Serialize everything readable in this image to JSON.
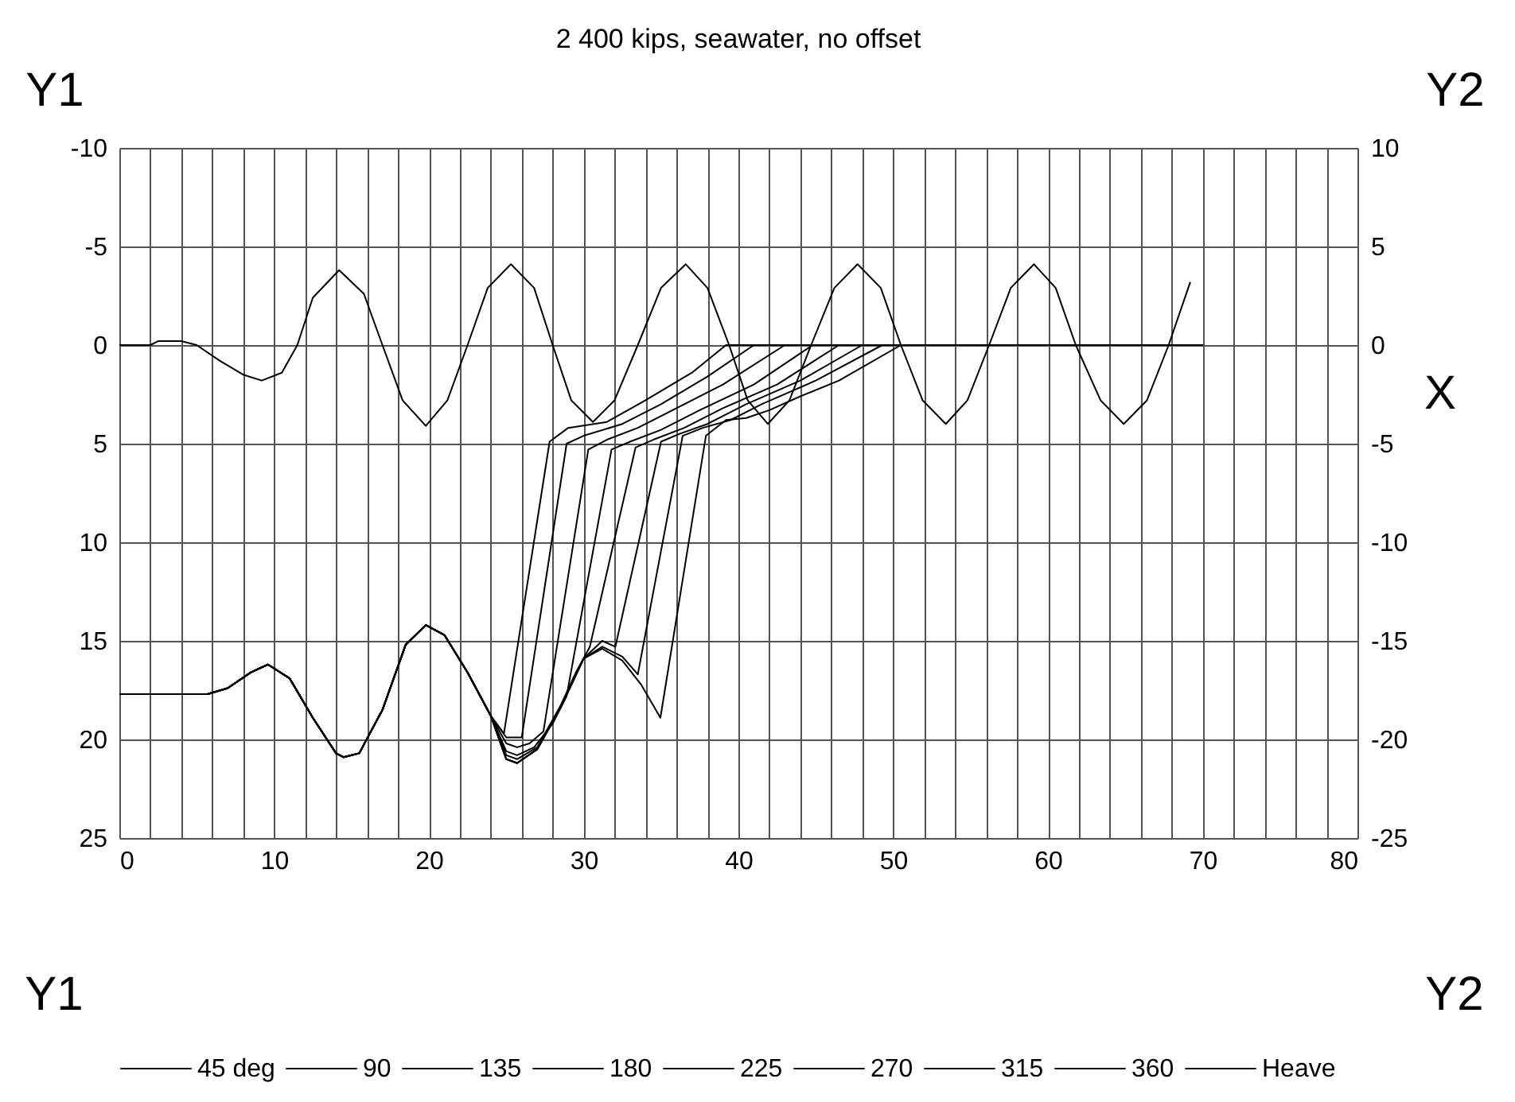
{
  "chart_data": {
    "type": "line",
    "title": "2 400 kips, seawater, no offset",
    "xlabel": "X",
    "ylabel": "Y1",
    "y2label": "Y2",
    "xlim": [
      0,
      80
    ],
    "xticks": [
      0,
      {
        "value": 2,
        "label": null
      },
      {
        "value": 4,
        "label": null
      },
      {
        "value": 6,
        "label": null
      },
      {
        "value": 8,
        "label": null
      },
      10,
      {
        "value": 12,
        "label": null
      },
      {
        "value": 14,
        "label": null
      },
      {
        "value": 16,
        "label": null
      },
      {
        "value": 18,
        "label": null
      },
      20,
      {
        "value": 22,
        "label": null
      },
      {
        "value": 24,
        "label": null
      },
      {
        "value": 26,
        "label": null
      },
      {
        "value": 28,
        "label": null
      },
      30,
      {
        "value": 32,
        "label": null
      },
      {
        "value": 34,
        "label": null
      },
      {
        "value": 36,
        "label": null
      },
      {
        "value": 38,
        "label": null
      },
      40,
      {
        "value": 42,
        "label": null
      },
      {
        "value": 44,
        "label": null
      },
      {
        "value": 46,
        "label": null
      },
      {
        "value": 48,
        "label": null
      },
      50,
      {
        "value": 52,
        "label": null
      },
      {
        "value": 54,
        "label": null
      },
      {
        "value": 56,
        "label": null
      },
      {
        "value": 58,
        "label": null
      },
      60,
      {
        "value": 62,
        "label": null
      },
      {
        "value": 64,
        "label": null
      },
      {
        "value": 66,
        "label": null
      },
      {
        "value": 68,
        "label": null
      },
      70,
      {
        "value": 72,
        "label": null
      },
      {
        "value": 74,
        "label": null
      },
      {
        "value": 76,
        "label": null
      },
      {
        "value": 78,
        "label": null
      },
      80
    ],
    "ylim": [
      25,
      -10
    ],
    "yticks": [
      -10,
      -5,
      0,
      5,
      10,
      15,
      20,
      25
    ],
    "y2lim": [
      -25,
      10
    ],
    "y2ticks": [
      -25,
      -20,
      -15,
      -10,
      -5,
      0,
      5,
      10
    ],
    "grid": true,
    "legend": "bottom",
    "series": [
      {
        "name": "45 deg",
        "color": "#000000",
        "x": [
          0,
          5.7,
          7,
          8.5,
          9.6,
          11,
          12.5,
          14,
          14.5,
          15.5,
          17,
          18.5,
          19.8,
          21,
          22.5,
          24,
          24.85,
          27.8,
          29,
          31.5,
          34,
          37,
          39.2,
          70
        ],
        "values": [
          17.7,
          17.7,
          17.4,
          16.6,
          16.2,
          16.9,
          18.9,
          20.7,
          20.9,
          20.7,
          18.5,
          15.2,
          14.2,
          14.7,
          16.6,
          18.8,
          19.7,
          4.9,
          4.2,
          3.9,
          2.8,
          1.4,
          0,
          0
        ]
      },
      {
        "name": "90",
        "color": "#000000",
        "x": [
          0,
          5.7,
          7,
          8.5,
          9.6,
          11,
          12.5,
          14,
          14.5,
          15.5,
          17,
          18.5,
          19.8,
          21,
          22.5,
          24,
          25,
          26,
          28.9,
          30,
          32.5,
          35,
          38,
          41,
          70
        ],
        "values": [
          17.7,
          17.7,
          17.4,
          16.6,
          16.2,
          16.9,
          18.9,
          20.7,
          20.9,
          20.7,
          18.5,
          15.2,
          14.2,
          14.7,
          16.6,
          18.8,
          19.9,
          19.9,
          5.0,
          4.6,
          4.0,
          3.0,
          1.6,
          0,
          0
        ]
      },
      {
        "name": "135",
        "color": "#000000",
        "x": [
          0,
          5.7,
          7,
          8.5,
          9.6,
          11,
          12.5,
          14,
          14.5,
          15.5,
          17,
          18.5,
          19.8,
          21,
          22.5,
          24,
          25,
          25.7,
          26.5,
          27.4,
          30.3,
          31.5,
          33.5,
          36,
          39,
          43,
          70
        ],
        "values": [
          17.7,
          17.7,
          17.4,
          16.6,
          16.2,
          16.9,
          18.9,
          20.7,
          20.9,
          20.7,
          18.5,
          15.2,
          14.2,
          14.7,
          16.6,
          18.8,
          20.2,
          20.4,
          20.2,
          19.6,
          5.3,
          4.8,
          4.2,
          3.2,
          2.0,
          0,
          0
        ]
      },
      {
        "name": "180",
        "color": "#000000",
        "x": [
          0,
          5.7,
          7,
          8.5,
          9.6,
          11,
          12.5,
          14,
          14.5,
          15.5,
          17,
          18.5,
          19.8,
          21,
          22.5,
          24,
          25,
          25.7,
          26.8,
          28,
          28.9,
          31.8,
          33,
          35,
          37.5,
          41,
          44.8,
          70
        ],
        "values": [
          17.7,
          17.7,
          17.4,
          16.6,
          16.2,
          16.9,
          18.9,
          20.7,
          20.9,
          20.7,
          18.5,
          15.2,
          14.2,
          14.7,
          16.6,
          18.8,
          20.6,
          20.8,
          20.4,
          19.2,
          17.8,
          5.3,
          4.9,
          4.3,
          3.3,
          2.0,
          0,
          0
        ]
      },
      {
        "name": "225",
        "color": "#000000",
        "x": [
          0,
          5.7,
          7,
          8.5,
          9.6,
          11,
          12.5,
          14,
          14.5,
          15.5,
          17,
          18.5,
          19.8,
          21,
          22.5,
          24,
          25,
          25.7,
          27,
          28.5,
          29.5,
          30.4,
          33.35,
          34.5,
          36.5,
          39,
          42.5,
          46.5,
          70
        ],
        "values": [
          17.7,
          17.7,
          17.4,
          16.6,
          16.2,
          16.9,
          18.9,
          20.7,
          20.9,
          20.7,
          18.5,
          15.2,
          14.2,
          14.7,
          16.6,
          18.8,
          20.8,
          21.0,
          20.4,
          18.3,
          16.6,
          15.3,
          5.2,
          4.8,
          4.2,
          3.2,
          2.0,
          0,
          0
        ]
      },
      {
        "name": "270",
        "color": "#000000",
        "x": [
          0,
          5.7,
          7,
          8.5,
          9.6,
          11,
          12.5,
          14,
          14.5,
          15.5,
          17,
          18.5,
          19.8,
          21,
          22.5,
          24,
          25,
          25.7,
          27,
          28.5,
          30,
          31.2,
          32.05,
          35,
          36.2,
          38,
          40.5,
          44,
          48,
          70
        ],
        "values": [
          17.7,
          17.7,
          17.4,
          16.6,
          16.2,
          16.9,
          18.9,
          20.7,
          20.9,
          20.7,
          18.5,
          15.2,
          14.2,
          14.7,
          16.6,
          18.8,
          21.0,
          21.2,
          20.5,
          18.4,
          15.9,
          15.0,
          15.3,
          4.9,
          4.5,
          4.0,
          3.0,
          1.8,
          0,
          0
        ]
      },
      {
        "name": "315",
        "color": "#000000",
        "x": [
          0,
          5.7,
          7,
          8.5,
          9.6,
          11,
          12.5,
          14,
          14.5,
          15.5,
          17,
          18.5,
          19.8,
          21,
          22.5,
          24,
          25,
          25.7,
          27,
          28.5,
          30,
          31.2,
          32.5,
          33.5,
          36.4,
          37.7,
          39.5,
          41.5,
          45,
          49.3,
          70
        ],
        "values": [
          17.7,
          17.7,
          17.4,
          16.6,
          16.2,
          16.9,
          18.9,
          20.7,
          20.9,
          20.7,
          18.5,
          15.2,
          14.2,
          14.7,
          16.6,
          18.8,
          21.0,
          21.2,
          20.5,
          18.4,
          15.9,
          15.3,
          15.8,
          16.7,
          4.6,
          4.2,
          3.8,
          3.0,
          1.8,
          0,
          0
        ]
      },
      {
        "name": "360",
        "color": "#000000",
        "x": [
          0,
          5.7,
          7,
          8.5,
          9.6,
          11,
          12.5,
          14,
          14.5,
          15.5,
          17,
          18.5,
          19.8,
          21,
          22.5,
          24,
          25,
          25.7,
          27,
          28.5,
          30,
          31.2,
          32.5,
          33.7,
          34.96,
          37.9,
          39.2,
          40.5,
          42,
          44,
          46.5,
          50.5,
          70
        ],
        "values": [
          17.7,
          17.7,
          17.4,
          16.6,
          16.2,
          16.9,
          18.9,
          20.7,
          20.9,
          20.7,
          18.5,
          15.2,
          14.2,
          14.7,
          16.6,
          18.8,
          21.0,
          21.2,
          20.5,
          18.4,
          15.9,
          15.4,
          16.0,
          17.2,
          18.9,
          4.6,
          3.8,
          3.7,
          3.3,
          2.6,
          1.8,
          0,
          0
        ]
      },
      {
        "name": "Heave",
        "color": "#000000",
        "axis": "y2",
        "x": [
          0,
          2,
          2.5,
          4,
          5,
          6.5,
          8,
          9.2,
          10.5,
          11.5,
          12.5,
          14.2,
          15.8,
          17,
          18.3,
          19.8,
          21.2,
          22.5,
          23.8,
          25.3,
          26.8,
          28,
          29.2,
          30.6,
          32,
          33.5,
          35,
          36.6,
          38,
          39.4,
          40.6,
          41.9,
          43.3,
          44.7,
          46.2,
          47.7,
          49.2,
          50.5,
          51.9,
          53.4,
          54.8,
          56.2,
          57.6,
          59.1,
          60.5,
          61.8,
          63.4,
          64.9,
          66.4,
          67.8,
          69.2
        ],
        "values": [
          0,
          0,
          0.2,
          0.2,
          0,
          -0.8,
          -1.5,
          -1.8,
          -1.4,
          0,
          2.4,
          3.8,
          2.6,
          0,
          -2.8,
          -4.1,
          -2.8,
          0,
          2.9,
          4.1,
          2.9,
          0,
          -2.8,
          -3.9,
          -2.8,
          0,
          2.9,
          4.1,
          2.9,
          0,
          -2.8,
          -4.0,
          -2.8,
          0,
          2.9,
          4.1,
          2.9,
          0,
          -2.8,
          -4.0,
          -2.8,
          0,
          2.9,
          4.1,
          2.9,
          0,
          -2.8,
          -4.0,
          -2.8,
          0,
          3.2
        ]
      }
    ]
  }
}
